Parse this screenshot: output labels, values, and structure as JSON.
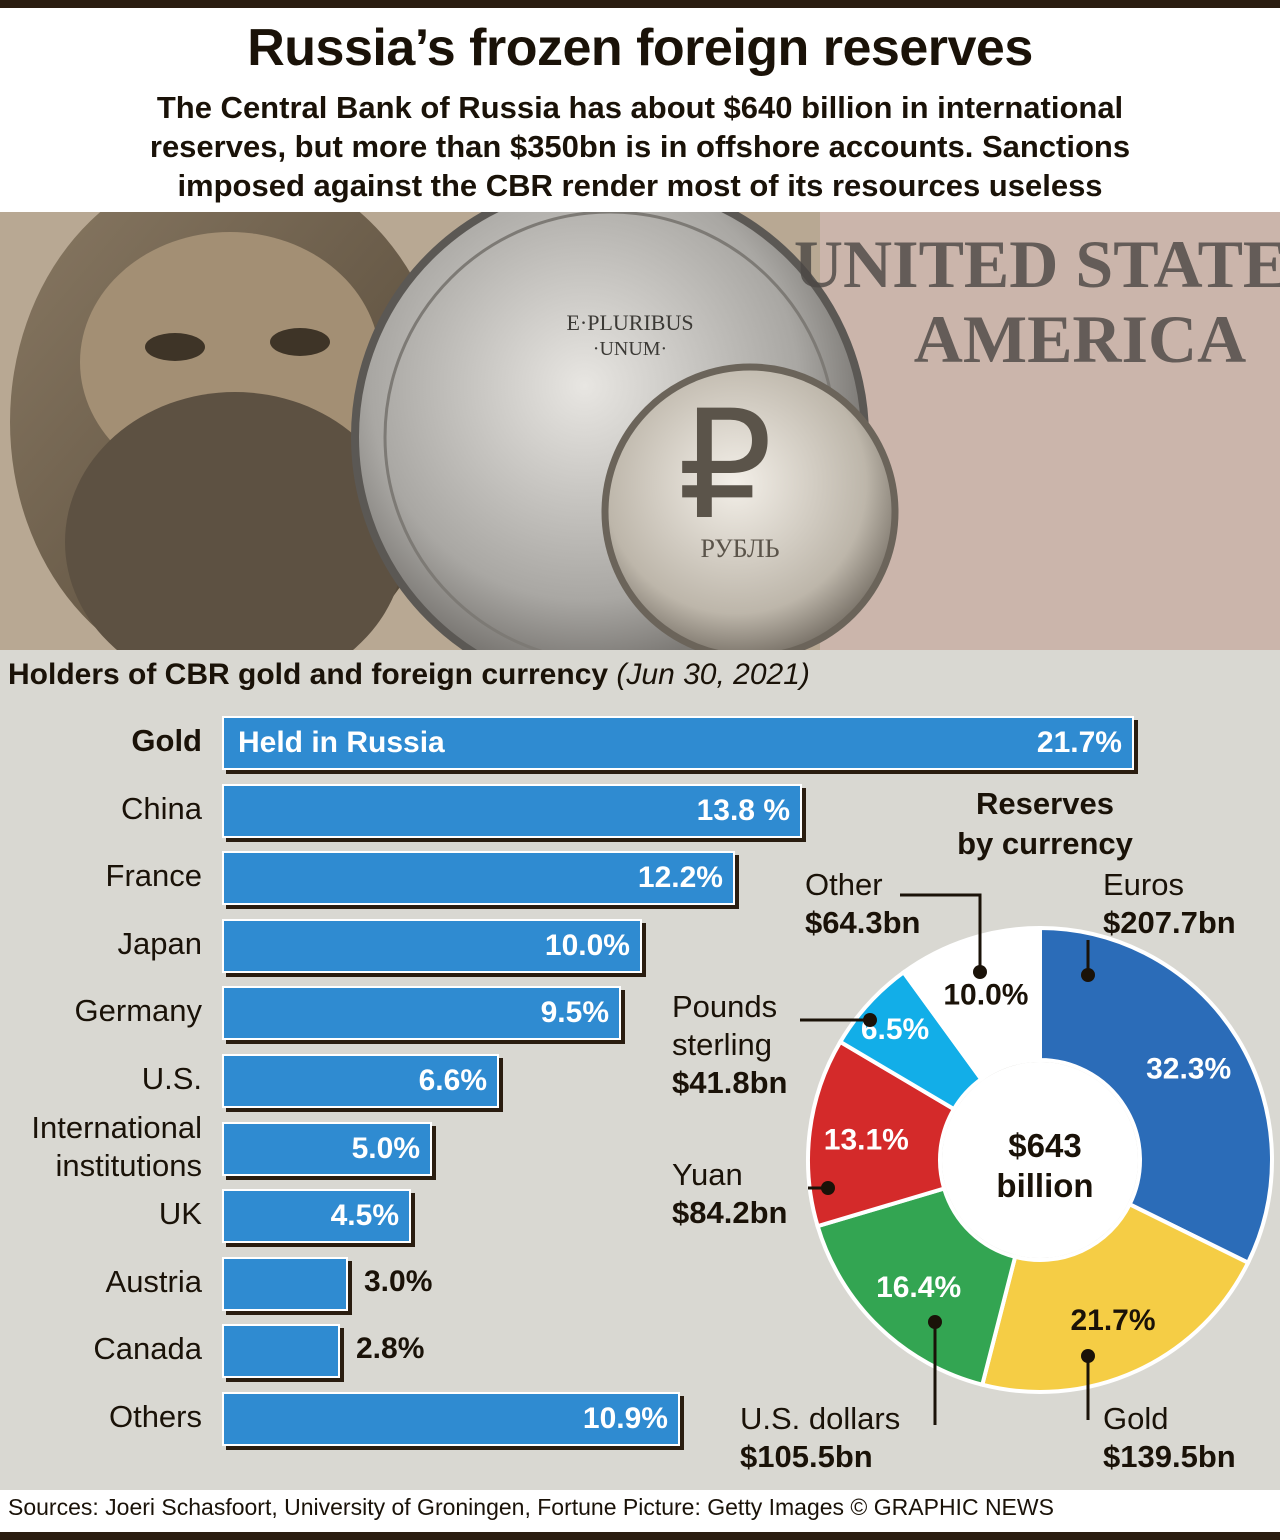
{
  "header": {
    "title": "Russia’s frozen foreign reserves",
    "subtitle_lines": [
      "The Central Bank of Russia has about $640 billion in international",
      "reserves, but more than $350bn is in offshore accounts. Sanctions",
      "imposed against the CBR render most of its resources useless"
    ]
  },
  "photo": {
    "coin_top": "E·PLURIBUS",
    "coin_bottom": "·UNUM·",
    "ruble_text": "РУБЛЬ",
    "ruble_symbol": "₽",
    "note_text_1": "UNITED STATES",
    "note_text_2": "AMERICA"
  },
  "chart_data": [
    {
      "type": "bar",
      "title": "Holders of CBR gold and foreign currency",
      "date_note": "(Jun 30, 2021)",
      "categories": [
        "Gold",
        "China",
        "France",
        "Japan",
        "Germany",
        "U.S.",
        "International institutions",
        "UK",
        "Austria",
        "Canada",
        "Others"
      ],
      "category_lines": [
        [
          "Gold"
        ],
        [
          "China"
        ],
        [
          "France"
        ],
        [
          "Japan"
        ],
        [
          "Germany"
        ],
        [
          "U.S."
        ],
        [
          "International",
          "institutions"
        ],
        [
          "UK"
        ],
        [
          "Austria"
        ],
        [
          "Canada"
        ],
        [
          "Others"
        ]
      ],
      "values": [
        21.7,
        13.8,
        12.2,
        10.0,
        9.5,
        6.6,
        5.0,
        4.5,
        3.0,
        2.8,
        10.9
      ],
      "value_labels": [
        "21.7%",
        "13.8 %",
        "12.2%",
        "10.0%",
        "9.5%",
        "6.6%",
        "5.0%",
        "4.5%",
        "3.0%",
        "2.8%",
        "10.9%"
      ],
      "gold_bar_label": "Held in Russia",
      "xlim": [
        0,
        21.7
      ],
      "color": "#2f8bd1"
    },
    {
      "type": "pie",
      "title_lines": [
        "Reserves",
        "by currency"
      ],
      "center_lines": [
        "$643",
        "billion"
      ],
      "slices": [
        {
          "label": "Euros",
          "amount": "$207.7bn",
          "value": 32.3,
          "pct_label": "32.3%",
          "color": "#2b6cb8",
          "text_color": "#ffffff"
        },
        {
          "label": "Gold",
          "amount": "$139.5bn",
          "value": 21.7,
          "pct_label": "21.7%",
          "color": "#f5cd45",
          "text_color": "#1a1208"
        },
        {
          "label": "U.S. dollars",
          "amount": "$105.5bn",
          "value": 16.4,
          "pct_label": "16.4%",
          "color": "#33a552",
          "text_color": "#ffffff"
        },
        {
          "label": "Yuan",
          "amount": "$84.2bn",
          "value": 13.1,
          "pct_label": "13.1%",
          "color": "#d42a2a",
          "text_color": "#ffffff"
        },
        {
          "label": "Pounds sterling",
          "label_lines": [
            "Pounds",
            "sterling"
          ],
          "amount": "$41.8bn",
          "value": 6.5,
          "pct_label": "6.5%",
          "color": "#12aee8",
          "text_color": "#ffffff"
        },
        {
          "label": "Other",
          "amount": "$64.3bn",
          "value": 10.0,
          "pct_label": "10.0%",
          "color": "#ffffff",
          "text_color": "#1a1208"
        }
      ]
    }
  ],
  "footer": {
    "text": "Sources: Joeri Schasfoort, University of Groningen, Fortune  Picture: Getty Images  © GRAPHIC NEWS"
  }
}
